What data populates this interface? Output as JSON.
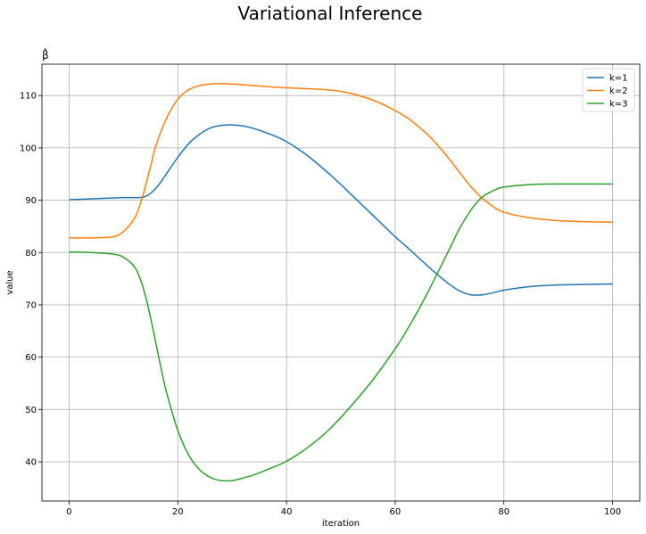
{
  "chart_data": {
    "type": "line",
    "suptitle": "Variational Inference",
    "title": "β̂",
    "xlabel": "iteration",
    "ylabel": "value",
    "xlim": [
      -5,
      105
    ],
    "ylim": [
      32.5,
      116
    ],
    "xticks": [
      0,
      20,
      40,
      60,
      80,
      100
    ],
    "yticks": [
      40,
      50,
      60,
      70,
      80,
      90,
      100,
      110
    ],
    "grid": true,
    "legend_position": "top-right",
    "series": [
      {
        "name": "k=1",
        "color": "#1f77b4",
        "x": [
          0,
          5,
          10,
          12,
          14,
          16,
          18,
          20,
          22,
          24,
          26,
          28,
          30,
          32,
          34,
          36,
          38,
          40,
          42,
          44,
          46,
          48,
          50,
          52,
          54,
          56,
          58,
          60,
          62,
          64,
          66,
          68,
          70,
          72,
          74,
          76,
          78,
          80,
          85,
          90,
          95,
          100
        ],
        "y": [
          90.1,
          90.3,
          90.5,
          90.5,
          90.7,
          92.3,
          95.2,
          98.2,
          100.8,
          102.6,
          103.8,
          104.3,
          104.4,
          104.2,
          103.7,
          103.0,
          102.2,
          101.2,
          99.9,
          98.4,
          96.7,
          94.9,
          93.0,
          91.0,
          89.0,
          87.0,
          85.0,
          83.0,
          81.2,
          79.3,
          77.4,
          75.6,
          73.9,
          72.6,
          71.9,
          71.9,
          72.3,
          72.8,
          73.5,
          73.8,
          73.9,
          74.0
        ]
      },
      {
        "name": "k=2",
        "color": "#ff7f0e",
        "x": [
          0,
          4,
          8,
          10,
          12,
          13,
          14,
          15,
          16,
          18,
          20,
          22,
          24,
          26,
          28,
          30,
          34,
          38,
          42,
          46,
          50,
          54,
          58,
          62,
          64,
          66,
          68,
          70,
          72,
          74,
          76,
          78,
          80,
          85,
          90,
          95,
          100
        ],
        "y": [
          82.8,
          82.8,
          83.0,
          84.0,
          86.5,
          89.0,
          92.5,
          96.5,
          100.5,
          105.8,
          109.3,
          111.1,
          111.9,
          112.2,
          112.3,
          112.2,
          111.9,
          111.6,
          111.4,
          111.2,
          110.8,
          109.8,
          108.2,
          105.9,
          104.3,
          102.5,
          100.3,
          97.8,
          95.1,
          92.5,
          90.4,
          88.8,
          87.7,
          86.6,
          86.1,
          85.9,
          85.8
        ]
      },
      {
        "name": "k=3",
        "color": "#2ca02c",
        "x": [
          0,
          4,
          8,
          10,
          12,
          13,
          14,
          15,
          16,
          17,
          18,
          20,
          22,
          24,
          26,
          28,
          30,
          32,
          34,
          36,
          40,
          44,
          48,
          52,
          56,
          60,
          62,
          64,
          66,
          68,
          70,
          72,
          74,
          75,
          76,
          78,
          80,
          85,
          90,
          95,
          100
        ],
        "y": [
          80.1,
          80.0,
          79.7,
          79.1,
          77.3,
          75.2,
          71.9,
          67.5,
          62.5,
          57.5,
          53.0,
          46.0,
          41.3,
          38.5,
          37.0,
          36.4,
          36.4,
          36.9,
          37.5,
          38.3,
          40.1,
          42.8,
          46.3,
          50.8,
          55.8,
          61.6,
          64.9,
          68.5,
          72.4,
          76.5,
          80.7,
          84.9,
          88.2,
          89.5,
          90.6,
          91.8,
          92.5,
          93.0,
          93.1,
          93.1,
          93.1
        ]
      }
    ]
  }
}
